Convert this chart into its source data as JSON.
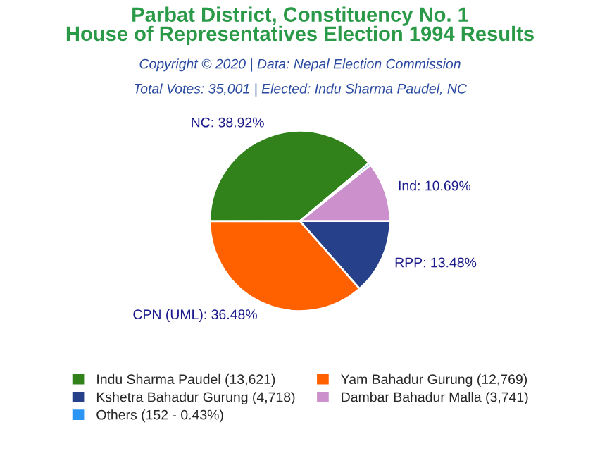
{
  "chart_data": {
    "type": "pie",
    "title": "Parbat District, Constituency No. 1\nHouse of Representatives Election 1994 Results",
    "subtitle": "Copyright © 2020 | Data: Nepal Election Commission",
    "annotations": [
      "Total Votes: 35,001 | Elected: Indu Sharma Paudel, NC"
    ],
    "categories": [
      "Indu Sharma Paudel (13,621)",
      "Yam Bahadur Gurung (12,769)",
      "Kshetra Bahadur Gurung (4,718)",
      "Dambar Bahadur Malla (3,741)",
      "Others (152 - 0.43%)"
    ],
    "values": [
      38.92,
      36.48,
      13.48,
      10.69,
      0.43
    ],
    "value_labels": [
      "NC: 38.92%",
      "CPN (UML): 36.48%",
      "RPP: 13.48%",
      "Ind: 10.69%",
      null
    ],
    "colors": [
      "#31821a",
      "#ff6000",
      "#26408a",
      "#cc91cc",
      "#2b95f5"
    ],
    "legend": "bottom"
  }
}
